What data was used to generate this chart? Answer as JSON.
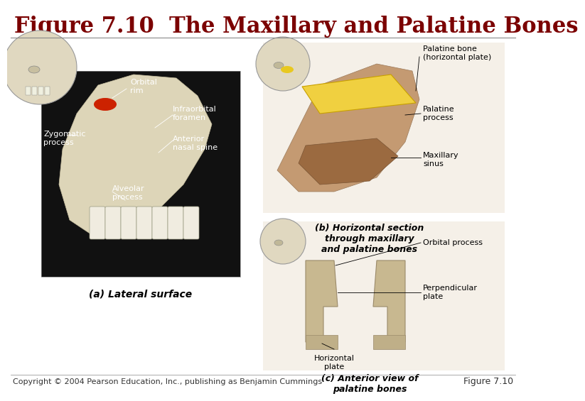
{
  "title": "Figure 7.10  The Maxillary and Palatine Bones",
  "title_color": "#7B0000",
  "title_fontsize": 22,
  "title_fontstyle": "bold",
  "background_color": "#FFFFFF",
  "copyright_text": "Copyright © 2004 Pearson Education, Inc., publishing as Benjamin Cummings",
  "figure_label": "Figure 7.10",
  "copyright_fontsize": 8,
  "figure_label_fontsize": 9,
  "subtitle_a": "(a) Lateral surface",
  "subtitle_b": "(b) Horizontal section\nthrough maxillary\nand palatine bones",
  "subtitle_c": "(c) Anterior view of\npalatine bones",
  "label_fontsize": 9,
  "image_bg": "#000000",
  "panel_bg": "#F0F0F0"
}
